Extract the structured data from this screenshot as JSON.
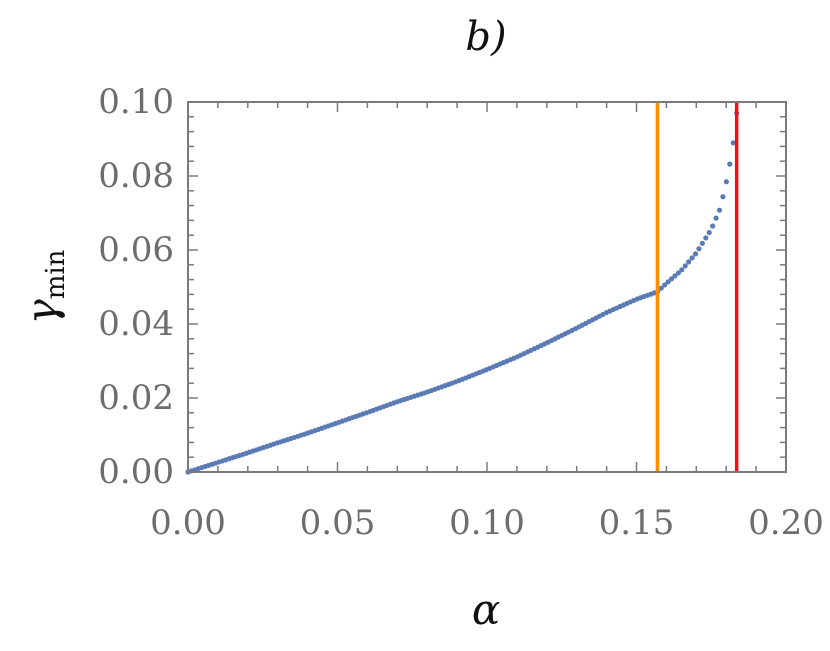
{
  "chart_data": {
    "type": "scatter",
    "title": "b)",
    "xlabel": "α",
    "ylabel": "γ",
    "ylabel_sub": "min",
    "xlim": [
      0.0,
      0.2
    ],
    "ylim": [
      0.0,
      0.1
    ],
    "xticks": [
      "0.00",
      "0.05",
      "0.10",
      "0.15",
      "0.20"
    ],
    "yticks": [
      "0.00",
      "0.02",
      "0.04",
      "0.06",
      "0.08",
      "0.10"
    ],
    "grid": false,
    "series": [
      {
        "color": "#5b7bb5",
        "x": [
          0.0,
          0.01,
          0.02,
          0.03,
          0.04,
          0.05,
          0.06,
          0.07,
          0.08,
          0.09,
          0.1,
          0.11,
          0.12,
          0.13,
          0.14,
          0.15,
          0.157,
          0.16,
          0.165,
          0.17,
          0.175,
          0.178,
          0.18,
          0.182,
          0.1835
        ],
        "y": [
          0.0,
          0.0026,
          0.0052,
          0.0079,
          0.0105,
          0.0133,
          0.0161,
          0.019,
          0.0216,
          0.0245,
          0.0277,
          0.0311,
          0.0349,
          0.0389,
          0.0431,
          0.0467,
          0.0487,
          0.051,
          0.0545,
          0.0592,
          0.0656,
          0.0712,
          0.0782,
          0.0865,
          0.097
        ]
      }
    ],
    "vlines": [
      {
        "x": 0.157,
        "color": "#ff8c00"
      },
      {
        "x": 0.1835,
        "color": "#e8131b"
      }
    ]
  }
}
